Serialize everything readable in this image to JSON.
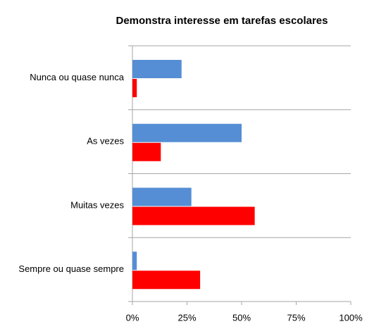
{
  "chart_data": {
    "type": "hbar",
    "title": "Demonstra interesse em tarefas escolares",
    "categories": [
      "Nunca ou quase nunca",
      "As vezes",
      "Muitas vezes",
      "Sempre ou quase sempre"
    ],
    "series": [
      {
        "color": "#558ed5",
        "values": [
          22.5,
          50,
          27,
          2
        ]
      },
      {
        "color": "#ff0000",
        "values": [
          2,
          13,
          56,
          31
        ]
      }
    ],
    "xlim": [
      0,
      100
    ],
    "xticks": [
      {
        "value": 0,
        "label": "0%"
      },
      {
        "value": 25,
        "label": "25%"
      },
      {
        "value": 50,
        "label": "50%"
      },
      {
        "value": 75,
        "label": "75%"
      },
      {
        "value": 100,
        "label": "100%"
      }
    ]
  }
}
